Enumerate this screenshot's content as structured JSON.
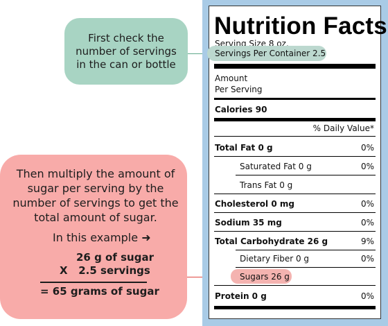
{
  "callouts": {
    "servings_note": "First check the number of servings in the can or bottle",
    "multiply_note": "Then multiply the amount of sugar per serving by the number of servings to get the total amount of sugar.",
    "example_label": "In this example",
    "arrow_icon": "arrow-right-icon",
    "calc_line1": "26 g of sugar",
    "calc_line2": "X   2.5 servings",
    "calc_result": "= 65 grams of sugar"
  },
  "nutrition_label": {
    "title": "Nutrition Facts",
    "serving_size": "Serving Size 8 oz.",
    "servings_per_container": "Servings Per Container 2.5",
    "amount_line1": "Amount",
    "amount_line2": "Per Serving",
    "calories": "Calories 90",
    "daily_value_header": "% Daily Value*",
    "rows": [
      {
        "label": "Total Fat 0 g",
        "value": "0%"
      },
      {
        "label": "Saturated Fat 0 g",
        "value": "0%"
      },
      {
        "label": "Trans Fat 0 g",
        "value": ""
      },
      {
        "label": "Cholesterol 0 mg",
        "value": "0%"
      },
      {
        "label": "Sodium 35 mg",
        "value": "0%"
      },
      {
        "label": "Total Carbohydrate 26 g",
        "value": "9%"
      },
      {
        "label": "Dietary Fiber 0 g",
        "value": "0%"
      },
      {
        "label": "Sugars 26 g",
        "value": ""
      },
      {
        "label": "Protein 0 g",
        "value": "0%"
      }
    ]
  },
  "colors": {
    "panel_blue": "#a9cbe6",
    "green_callout": "#a8d4c3",
    "red_callout": "#f8aba9",
    "green_highlight": "#bcd8cf",
    "red_highlight": "#f4b3b0",
    "red_connector": "#e0453f",
    "green_connector": "#5fa98b"
  }
}
